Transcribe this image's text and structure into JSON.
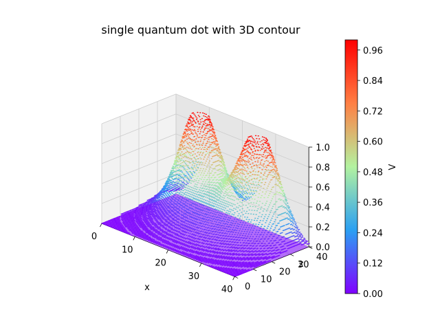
{
  "chart_data": {
    "type": "surface-contour-3d",
    "title": "single quantum dot with 3D contour",
    "xlabel": "x",
    "zlabel": "z",
    "colorbar_label": "V",
    "xlim": [
      0,
      40
    ],
    "zlim": [
      0,
      40
    ],
    "vlim": [
      0,
      1.0
    ],
    "x_ticks": [
      "0",
      "10",
      "20",
      "30",
      "40"
    ],
    "z_ticks": [
      "0",
      "10",
      "20",
      "30",
      "40"
    ],
    "v_ticks": [
      "0.0",
      "0.2",
      "0.4",
      "0.6",
      "0.8",
      "1.0"
    ],
    "colorbar_ticks": [
      "0.00",
      "0.12",
      "0.24",
      "0.36",
      "0.48",
      "0.60",
      "0.72",
      "0.84",
      "0.96"
    ],
    "colormap": "rainbow",
    "colormap_stops": [
      "#8000ff",
      "#2ba0f2",
      "#b3f2a0",
      "#ff7f44",
      "#ff0000"
    ],
    "contour_levels": 60,
    "surface": {
      "description_peaks": [
        {
          "x": 11,
          "z": 33,
          "v": 1.0
        },
        {
          "x": 29,
          "z": 33,
          "v": 1.0
        }
      ]
    },
    "grid": true
  }
}
